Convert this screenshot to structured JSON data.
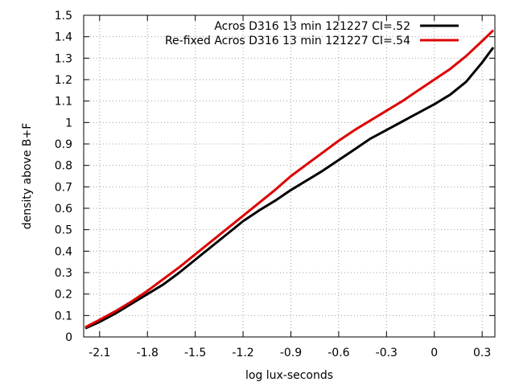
{
  "chart_data": {
    "type": "line",
    "xlabel": "log lux-seconds",
    "ylabel": "density above B+F",
    "xlim": [
      -2.2,
      0.38
    ],
    "ylim": [
      0,
      1.5
    ],
    "x_ticks": [
      -2.1,
      -1.8,
      -1.5,
      -1.2,
      -0.9,
      -0.6,
      -0.3,
      0,
      0.3
    ],
    "x_tick_labels": [
      "-2.1",
      "-1.8",
      "-1.5",
      "-1.2",
      "-0.9",
      "-0.6",
      "-0.3",
      "0",
      "0.3"
    ],
    "y_ticks": [
      0,
      0.1,
      0.2,
      0.3,
      0.4,
      0.5,
      0.6,
      0.7,
      0.8,
      0.9,
      1,
      1.1,
      1.2,
      1.3,
      1.4,
      1.5
    ],
    "y_tick_labels": [
      "0",
      "0.1",
      "0.2",
      "0.3",
      "0.4",
      "0.5",
      "0.6",
      "0.7",
      "0.8",
      "0.9",
      "1",
      "1.1",
      "1.2",
      "1.3",
      "1.4",
      "1.5"
    ],
    "grid": true,
    "legend_position": "top-right",
    "series": [
      {
        "name": "Acros D316 13 min 121227 CI=.52",
        "color": "#000000",
        "x": [
          -2.19,
          -2.1,
          -2.0,
          -1.9,
          -1.8,
          -1.7,
          -1.6,
          -1.5,
          -1.4,
          -1.3,
          -1.2,
          -1.1,
          -1.0,
          -0.9,
          -0.8,
          -0.7,
          -0.6,
          -0.5,
          -0.4,
          -0.3,
          -0.2,
          -0.1,
          0.0,
          0.1,
          0.2,
          0.3,
          0.37
        ],
        "y": [
          0.04,
          0.07,
          0.11,
          0.155,
          0.2,
          0.245,
          0.3,
          0.36,
          0.42,
          0.48,
          0.54,
          0.59,
          0.635,
          0.685,
          0.73,
          0.775,
          0.825,
          0.875,
          0.925,
          0.965,
          1.005,
          1.045,
          1.085,
          1.13,
          1.19,
          1.28,
          1.35
        ]
      },
      {
        "name": "Re-fixed Acros D316 13 min 121227 CI=.54",
        "color": "#dd0000",
        "x": [
          -2.19,
          -2.1,
          -2.0,
          -1.9,
          -1.8,
          -1.7,
          -1.6,
          -1.5,
          -1.4,
          -1.3,
          -1.2,
          -1.1,
          -1.0,
          -0.9,
          -0.8,
          -0.7,
          -0.6,
          -0.5,
          -0.4,
          -0.3,
          -0.2,
          -0.1,
          0.0,
          0.1,
          0.2,
          0.3,
          0.37
        ],
        "y": [
          0.045,
          0.08,
          0.12,
          0.165,
          0.215,
          0.27,
          0.325,
          0.385,
          0.445,
          0.505,
          0.565,
          0.625,
          0.685,
          0.75,
          0.805,
          0.86,
          0.915,
          0.965,
          1.01,
          1.055,
          1.1,
          1.15,
          1.2,
          1.25,
          1.31,
          1.38,
          1.43
        ]
      }
    ]
  }
}
